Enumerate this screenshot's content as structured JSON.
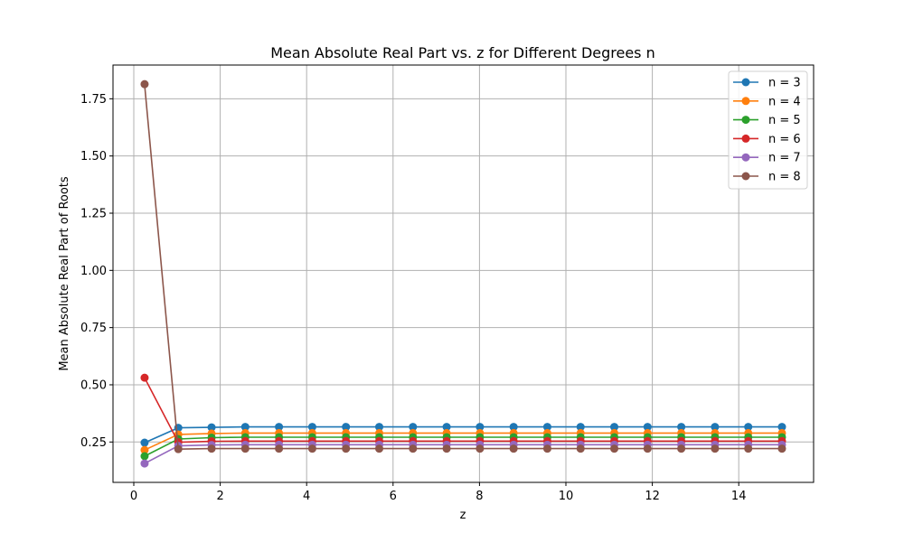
{
  "chart_data": {
    "type": "line",
    "title": "Mean Absolute Real Part vs. z for Different Degrees n",
    "xlabel": "z",
    "ylabel": "Mean Absolute Real Part of Roots",
    "xlim": [
      -0.5,
      15.75
    ],
    "ylim": [
      0.07,
      1.9
    ],
    "xticks": [
      0,
      2,
      4,
      6,
      8,
      10,
      12,
      14
    ],
    "xtick_labels": [
      "0",
      "2",
      "4",
      "6",
      "8",
      "10",
      "12",
      "14"
    ],
    "yticks": [
      0.25,
      0.5,
      0.75,
      1.0,
      1.25,
      1.5,
      1.75
    ],
    "ytick_labels": [
      "0.25",
      "0.50",
      "0.75",
      "1.00",
      "1.25",
      "1.50",
      "1.75"
    ],
    "grid": true,
    "legend_position": "upper right",
    "x": [
      0.25,
      1.03,
      1.8,
      2.58,
      3.36,
      4.13,
      4.91,
      5.68,
      6.46,
      7.24,
      8.01,
      8.79,
      9.57,
      10.34,
      11.12,
      11.89,
      12.67,
      13.45,
      14.22,
      15.0
    ],
    "series": [
      {
        "name": "n = 3",
        "color": "#1f77b4",
        "values": [
          0.247,
          0.312,
          0.314,
          0.316,
          0.316,
          0.316,
          0.316,
          0.316,
          0.316,
          0.316,
          0.316,
          0.316,
          0.316,
          0.316,
          0.316,
          0.316,
          0.316,
          0.316,
          0.316,
          0.316
        ]
      },
      {
        "name": "n = 4",
        "color": "#ff7f0e",
        "values": [
          0.215,
          0.283,
          0.287,
          0.289,
          0.289,
          0.289,
          0.289,
          0.289,
          0.289,
          0.289,
          0.289,
          0.289,
          0.289,
          0.289,
          0.289,
          0.289,
          0.289,
          0.289,
          0.289,
          0.289
        ]
      },
      {
        "name": "n = 5",
        "color": "#2ca02c",
        "values": [
          0.188,
          0.263,
          0.269,
          0.271,
          0.271,
          0.271,
          0.271,
          0.271,
          0.271,
          0.271,
          0.271,
          0.271,
          0.271,
          0.271,
          0.271,
          0.271,
          0.271,
          0.271,
          0.271,
          0.271
        ]
      },
      {
        "name": "n = 6",
        "color": "#d62728",
        "values": [
          0.531,
          0.249,
          0.253,
          0.254,
          0.254,
          0.254,
          0.254,
          0.254,
          0.254,
          0.254,
          0.254,
          0.254,
          0.254,
          0.254,
          0.254,
          0.254,
          0.254,
          0.254,
          0.254,
          0.254
        ]
      },
      {
        "name": "n = 7",
        "color": "#9467bd",
        "values": [
          0.156,
          0.233,
          0.237,
          0.238,
          0.238,
          0.238,
          0.238,
          0.238,
          0.238,
          0.238,
          0.238,
          0.238,
          0.238,
          0.238,
          0.238,
          0.238,
          0.238,
          0.238,
          0.238,
          0.238
        ]
      },
      {
        "name": "n = 8",
        "color": "#8c564b",
        "values": [
          1.814,
          0.219,
          0.221,
          0.221,
          0.221,
          0.221,
          0.221,
          0.221,
          0.221,
          0.221,
          0.221,
          0.221,
          0.221,
          0.221,
          0.221,
          0.221,
          0.221,
          0.221,
          0.221,
          0.221
        ]
      }
    ]
  }
}
